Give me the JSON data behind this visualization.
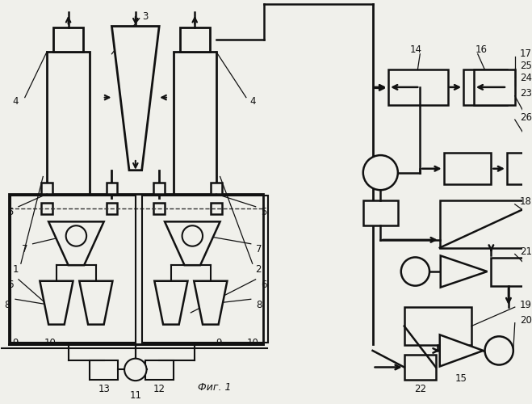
{
  "bg_color": "#f0f0eb",
  "line_color": "#111111",
  "fig_caption": "Фиг. 1"
}
